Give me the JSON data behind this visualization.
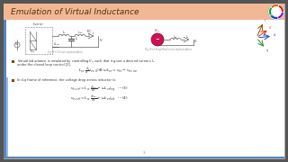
{
  "title": "Emulation of Virtual Inductance",
  "title_bg": "#f2b896",
  "slide_bg": "#e8e8e8",
  "content_bg": "#ffffff",
  "text_color": "#333333",
  "bullet_color": "#884400",
  "left_bar_color1": "#5588bb",
  "left_bar_color2": "#99bbdd",
  "diagram1_label": "Fig. N+1 Circuit representation",
  "diagram2_label": "Fig. N+2 Simplified circuit representation",
  "accent_orange": "#cc6600",
  "border_color": "#cccccc",
  "outer_bg": "#555555"
}
